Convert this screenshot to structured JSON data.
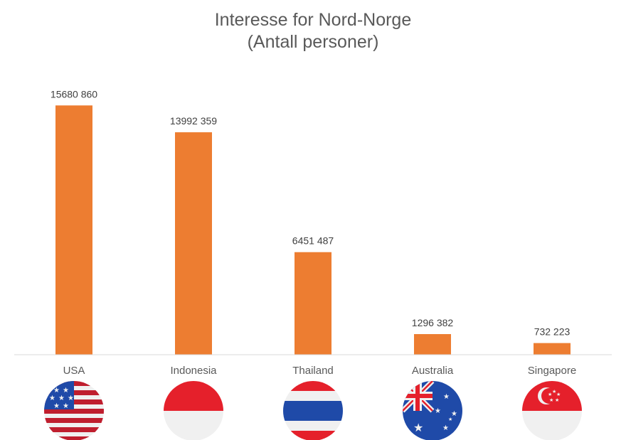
{
  "chart_data": {
    "type": "bar",
    "title": "Interesse for Nord-Norge",
    "subtitle": "(Antall personer)",
    "xlabel": "",
    "ylabel": "",
    "ylim": [
      0,
      16500000
    ],
    "grid": false,
    "legend": "none",
    "bar_color": "#ED7D31",
    "categories": [
      "USA",
      "Indonesia",
      "Thailand",
      "Australia",
      "Singapore"
    ],
    "values": [
      15680860,
      13992359,
      6451487,
      1296382,
      732223
    ],
    "data_labels": [
      "15680 860",
      "13992 359",
      "6451 487",
      "1296 382",
      "732 223"
    ]
  },
  "flags": [
    {
      "country": "USA",
      "icon": "usa-flag-icon",
      "colors": [
        "#BF1E2E",
        "#F0F0F0",
        "#1F4AA8"
      ]
    },
    {
      "country": "Indonesia",
      "icon": "indonesia-flag-icon",
      "colors": [
        "#E5202B",
        "#F0F0F0"
      ]
    },
    {
      "country": "Thailand",
      "icon": "thailand-flag-icon",
      "colors": [
        "#E5202B",
        "#F0F0F0",
        "#1F4AA8"
      ]
    },
    {
      "country": "Australia",
      "icon": "australia-flag-icon",
      "colors": [
        "#1F4AA8",
        "#F0F0F0",
        "#E5202B"
      ]
    },
    {
      "country": "Singapore",
      "icon": "singapore-flag-icon",
      "colors": [
        "#E5202B",
        "#F0F0F0"
      ]
    }
  ]
}
